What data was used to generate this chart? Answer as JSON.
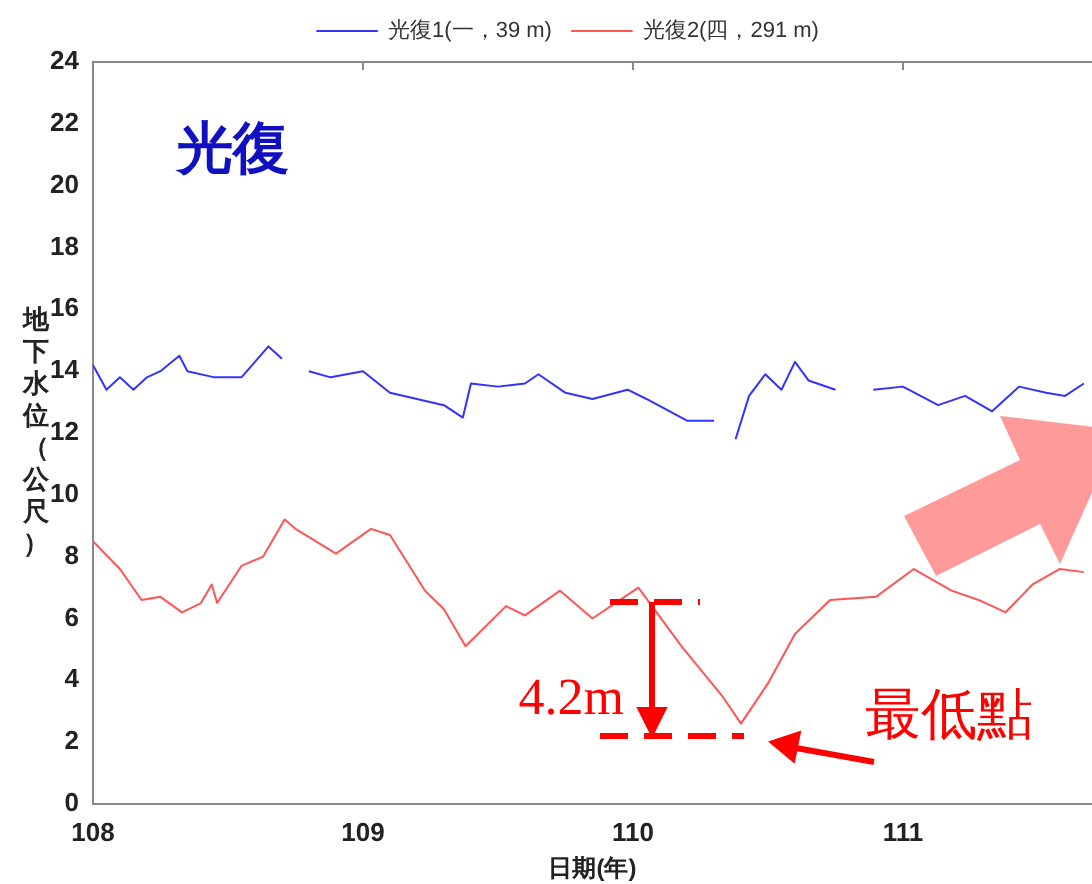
{
  "chart_data": {
    "type": "line",
    "xlabel": "日期(年)",
    "ylabel": "地下水位（公尺）",
    "xlim": [
      108,
      111.7
    ],
    "xticks": [
      108,
      109,
      110,
      111
    ],
    "ylim": [
      0,
      24
    ],
    "yticks": [
      0,
      2,
      4,
      6,
      8,
      10,
      12,
      14,
      16,
      18,
      20,
      22,
      24
    ],
    "legend": "top",
    "series": [
      {
        "name": "光復1(一，39 m)",
        "color": "#3333ff",
        "x": [
          108,
          108.05,
          108.1,
          108.15,
          108.2,
          108.25,
          108.32,
          108.35,
          108.45,
          108.55,
          108.65,
          108.7,
          108.72,
          108.8,
          108.88,
          109,
          109.1,
          109.2,
          109.3,
          109.37,
          109.4,
          109.5,
          109.6,
          109.65,
          109.75,
          109.85,
          109.98,
          110.05,
          110.2,
          110.3,
          110.33,
          110.38,
          110.43,
          110.49,
          110.55,
          110.6,
          110.65,
          110.75,
          110.8,
          110.89,
          111,
          111.13,
          111.23,
          111.33,
          111.43,
          111.53,
          111.6,
          111.67
        ],
        "values": [
          14.2,
          13.4,
          13.8,
          13.4,
          13.8,
          14,
          14.5,
          14,
          13.8,
          13.8,
          14.8,
          14.4,
          null,
          14,
          13.8,
          14,
          13.3,
          13.1,
          12.9,
          12.5,
          13.6,
          13.5,
          13.6,
          13.9,
          13.3,
          13.1,
          13.4,
          13.1,
          12.4,
          12.4,
          null,
          11.8,
          13.2,
          13.9,
          13.4,
          14.3,
          13.7,
          13.4,
          null,
          13.4,
          13.5,
          12.9,
          13.2,
          12.7,
          13.5,
          13.3,
          13.2,
          13.6
        ]
      },
      {
        "name": "光復2(四，291 m)",
        "color": "#ff5555",
        "x": [
          108,
          108.1,
          108.18,
          108.25,
          108.33,
          108.4,
          108.44,
          108.46,
          108.55,
          108.63,
          108.71,
          108.75,
          108.9,
          109.03,
          109.1,
          109.23,
          109.3,
          109.38,
          109.53,
          109.6,
          109.73,
          109.85,
          110.02,
          110.18,
          110.33,
          110.4,
          110.5,
          110.6,
          110.73,
          110.9,
          111.04,
          111.18,
          111.28,
          111.38,
          111.48,
          111.58,
          111.67
        ],
        "values": [
          8.5,
          7.6,
          6.6,
          6.7,
          6.2,
          6.5,
          7.1,
          6.5,
          7.7,
          8,
          9.2,
          8.9,
          8.1,
          8.9,
          8.7,
          6.9,
          6.3,
          5.1,
          6.4,
          6.1,
          6.9,
          6,
          7,
          5.1,
          3.5,
          2.6,
          3.9,
          5.5,
          6.6,
          6.7,
          7.6,
          6.9,
          6.6,
          6.2,
          7.1,
          7.6,
          7.5
        ]
      }
    ],
    "annotations": [
      "光復",
      "4.2m",
      {
        "text": "最低點",
        "x": 110.4,
        "y": 2.6
      }
    ]
  }
}
